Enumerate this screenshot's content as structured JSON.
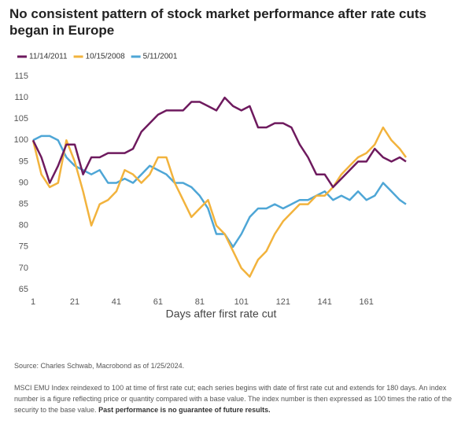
{
  "chart_data": {
    "type": "line",
    "title": "No consistent pattern of stock market performance after rate cuts began in Europe",
    "x_label": "Days after first rate cut",
    "x": [
      1,
      5,
      9,
      13,
      17,
      21,
      25,
      29,
      33,
      37,
      41,
      45,
      49,
      53,
      57,
      61,
      65,
      69,
      73,
      77,
      81,
      85,
      89,
      93,
      97,
      101,
      105,
      109,
      113,
      117,
      121,
      125,
      129,
      133,
      137,
      141,
      145,
      149,
      153,
      157,
      161,
      165,
      169,
      173,
      177,
      180
    ],
    "series": [
      {
        "name": "11/14/2011",
        "color": "#6e1a5e",
        "values": [
          100,
          96,
          90,
          94,
          99,
          99,
          92,
          96,
          96,
          97,
          97,
          97,
          98,
          102,
          104,
          106,
          107,
          107,
          107,
          109,
          109,
          108,
          107,
          110,
          108,
          107,
          108,
          103,
          103,
          104,
          104,
          103,
          99,
          96,
          92,
          92,
          89,
          91,
          93,
          95,
          95,
          98,
          96,
          95,
          96,
          95
        ]
      },
      {
        "name": "10/15/2008",
        "color": "#f2b33d",
        "values": [
          100,
          92,
          89,
          90,
          100,
          95,
          88,
          80,
          85,
          86,
          88,
          93,
          92,
          90,
          92,
          96,
          96,
          90,
          86,
          82,
          84,
          86,
          80,
          78,
          74,
          70,
          68,
          72,
          74,
          78,
          81,
          83,
          85,
          85,
          87,
          87,
          89,
          92,
          94,
          96,
          97,
          99,
          103,
          100,
          98,
          96
        ]
      },
      {
        "name": "5/11/2001",
        "color": "#4ea6d6",
        "values": [
          100,
          101,
          101,
          100,
          96,
          94,
          93,
          92,
          93,
          90,
          90,
          91,
          90,
          92,
          94,
          93,
          92,
          90,
          90,
          89,
          87,
          84,
          78,
          78,
          75,
          78,
          82,
          84,
          84,
          85,
          84,
          85,
          86,
          86,
          87,
          88,
          86,
          87,
          86,
          88,
          86,
          87,
          90,
          88,
          86,
          85
        ]
      }
    ],
    "xlim": [
      1,
      180
    ],
    "xticks": [
      1,
      21,
      41,
      61,
      81,
      101,
      121,
      141,
      161
    ],
    "ylim": [
      65,
      115
    ],
    "yticks": [
      65,
      70,
      75,
      80,
      85,
      90,
      95,
      100,
      105,
      110,
      115
    ],
    "source": "Source: Charles Schwab, Macrobond as of 1/25/2024.",
    "note": "MSCI EMU Index reindexed to 100 at time of first rate cut; each series begins with date of first rate cut and extends for 180 days. An index number is a figure reflecting price or quantity compared with a base value. The index number is then expressed as 100 times the ratio of the security to the base value.",
    "note_emphasis": "Past performance is no guarantee of future results."
  }
}
